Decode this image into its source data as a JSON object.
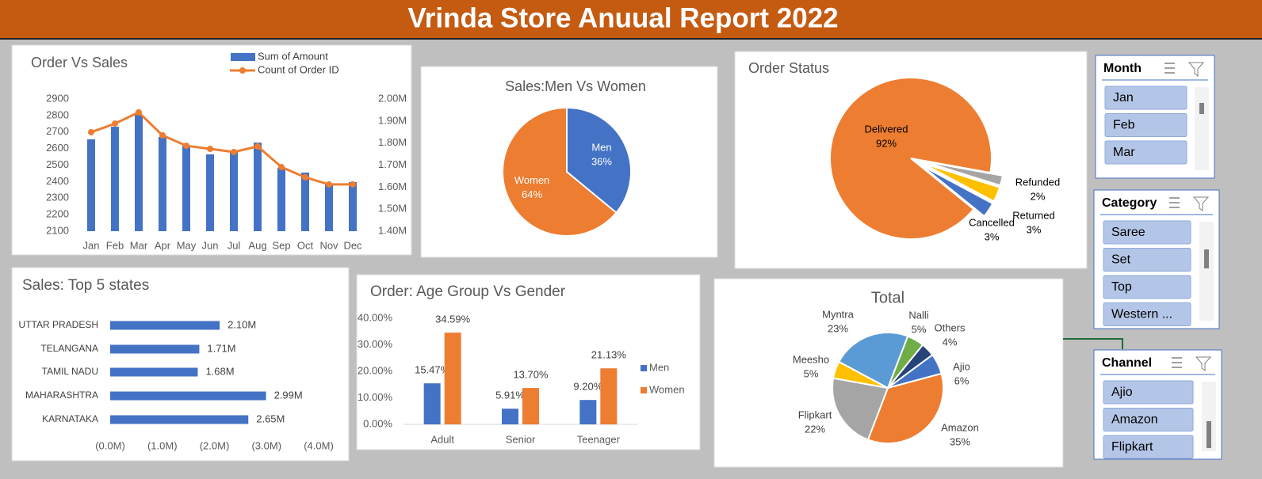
{
  "title": "Vrinda Store Anuual Report 2022",
  "chart_data": [
    {
      "type": "combo",
      "title": "Order Vs Sales",
      "categories": [
        "Jan",
        "Feb",
        "Mar",
        "Apr",
        "May",
        "Jun",
        "Jul",
        "Aug",
        "Sep",
        "Oct",
        "Nov",
        "Dec"
      ],
      "series": [
        {
          "name": "Sum of Amount",
          "type": "bar",
          "axis": "y2",
          "color": "#4472c4",
          "values": [
            1817000,
            1874000,
            1928000,
            1828000,
            1788000,
            1749000,
            1766000,
            1802000,
            1687000,
            1666000,
            1616000,
            1623000
          ]
        },
        {
          "name": "Count of Order ID",
          "type": "line",
          "color": "#ed7d31",
          "values": [
            2699,
            2751,
            2819,
            2680,
            2617,
            2598,
            2579,
            2613,
            2488,
            2426,
            2383,
            2383
          ]
        }
      ],
      "ylim": [
        2100,
        2900
      ],
      "yticks": [
        2100,
        2200,
        2300,
        2400,
        2500,
        2600,
        2700,
        2800,
        2900
      ],
      "y2lim": [
        1400000,
        2000000
      ],
      "y2ticks": [
        {
          "value": 1400000,
          "label": "1.40M"
        },
        {
          "value": 1500000,
          "label": "1.50M"
        },
        {
          "value": 1600000,
          "label": "1.60M"
        },
        {
          "value": 1700000,
          "label": "1.70M"
        },
        {
          "value": 1800000,
          "label": "1.80M"
        },
        {
          "value": 1900000,
          "label": "1.90M"
        },
        {
          "value": 2000000,
          "label": "2.00M"
        }
      ]
    },
    {
      "type": "pie",
      "title": "Sales:Men Vs Women",
      "categories": [
        "Men",
        "Women"
      ],
      "values": [
        36,
        64
      ],
      "value_labels": [
        "36%",
        "64%"
      ],
      "colors": [
        "#4472c4",
        "#ed7d31"
      ]
    },
    {
      "type": "pie",
      "title": "Order Status",
      "categories": [
        "Delivered",
        "Refunded",
        "Returned",
        "Cancelled"
      ],
      "values": [
        92,
        2,
        3,
        3
      ],
      "value_labels": [
        "92%",
        "2%",
        "3%",
        "3%"
      ],
      "colors": [
        "#ed7d31",
        "#a5a5a5",
        "#ffc000",
        "#4472c4"
      ]
    },
    {
      "type": "barh",
      "title": "Sales: Top 5 states",
      "categories": [
        "UTTAR PRADESH",
        "TELANGANA",
        "TAMIL NADU",
        "MAHARASHTRA",
        "KARNATAKA"
      ],
      "values": [
        2100000,
        1710000,
        1680000,
        2990000,
        2650000
      ],
      "value_labels": [
        "2.10M",
        "1.71M",
        "1.68M",
        "2.99M",
        "2.65M"
      ],
      "color": "#4472c4",
      "xlim": [
        0,
        4000000
      ],
      "xticks": [
        {
          "value": 0,
          "label": "(0.0M)"
        },
        {
          "value": 1000000,
          "label": "(1.0M)"
        },
        {
          "value": 2000000,
          "label": "(2.0M)"
        },
        {
          "value": 3000000,
          "label": "(3.0M)"
        },
        {
          "value": 4000000,
          "label": "(4.0M)"
        }
      ]
    },
    {
      "type": "bar",
      "title": "Order: Age Group Vs Gender",
      "categories": [
        "Adult",
        "Senior",
        "Teenager"
      ],
      "series": [
        {
          "name": "Men",
          "color": "#4472c4",
          "values": [
            15.47,
            5.91,
            9.2
          ],
          "value_labels": [
            "15.47%",
            "5.91%",
            "9.20%"
          ]
        },
        {
          "name": "Women",
          "color": "#ed7d31",
          "values": [
            34.59,
            13.7,
            21.13
          ],
          "value_labels": [
            "34.59%",
            "13.70%",
            "21.13%"
          ]
        }
      ],
      "ylim": [
        0,
        40
      ],
      "yticks": [
        {
          "value": 0,
          "label": "0.00%"
        },
        {
          "value": 10,
          "label": "10.00%"
        },
        {
          "value": 20,
          "label": "20.00%"
        },
        {
          "value": 30,
          "label": "30.00%"
        },
        {
          "value": 40,
          "label": "40.00%"
        }
      ]
    },
    {
      "type": "pie",
      "title": "Total",
      "categories": [
        "Nalli",
        "Others",
        "Ajio",
        "Amazon",
        "Flipkart",
        "Meesho",
        "Myntra"
      ],
      "values": [
        5,
        4,
        6,
        35,
        22,
        5,
        23
      ],
      "value_labels": [
        "5%",
        "4%",
        "6%",
        "35%",
        "22%",
        "5%",
        "23%"
      ],
      "colors": [
        "#70ad47",
        "#264478",
        "#4472c4",
        "#ed7d31",
        "#a5a5a5",
        "#ffc000",
        "#5b9bd5"
      ]
    }
  ],
  "slicers": [
    {
      "title": "Month",
      "items": [
        "Jan",
        "Feb",
        "Mar"
      ]
    },
    {
      "title": "Category",
      "items": [
        "Saree",
        "Set",
        "Top",
        "Western ..."
      ]
    },
    {
      "title": "Channel",
      "items": [
        "Ajio",
        "Amazon",
        "Flipkart"
      ]
    }
  ]
}
